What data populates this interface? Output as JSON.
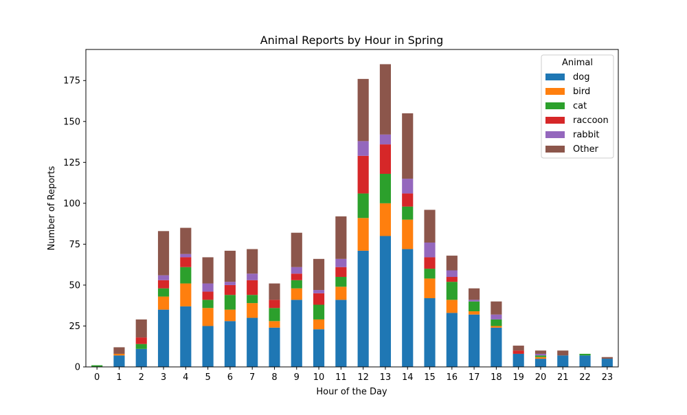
{
  "chart_data": {
    "type": "bar",
    "stacked": true,
    "title": "Animal Reports by Hour in Spring",
    "xlabel": "Hour of the Day",
    "ylabel": "Number of Reports",
    "ylim": [
      0,
      194
    ],
    "yticks": [
      0,
      25,
      50,
      75,
      100,
      125,
      150,
      175
    ],
    "grid": false,
    "legend": {
      "title": "Animal",
      "placement": "top-right"
    },
    "categories": [
      "0",
      "1",
      "2",
      "3",
      "4",
      "5",
      "6",
      "7",
      "8",
      "9",
      "10",
      "11",
      "12",
      "13",
      "14",
      "15",
      "16",
      "17",
      "18",
      "19",
      "20",
      "21",
      "22",
      "23"
    ],
    "series": [
      {
        "name": "dog",
        "color": "#1f77b4",
        "values": [
          0,
          7,
          11,
          35,
          37,
          25,
          28,
          30,
          24,
          41,
          23,
          41,
          71,
          80,
          72,
          42,
          33,
          32,
          24,
          8,
          5,
          7,
          7,
          5
        ]
      },
      {
        "name": "bird",
        "color": "#ff7f0e",
        "values": [
          0,
          1,
          0,
          8,
          14,
          11,
          7,
          9,
          4,
          7,
          6,
          8,
          20,
          20,
          18,
          12,
          8,
          2,
          1,
          0,
          1,
          0,
          0,
          0
        ]
      },
      {
        "name": "cat",
        "color": "#2ca02c",
        "values": [
          1,
          0,
          3,
          5,
          10,
          5,
          9,
          5,
          8,
          5,
          9,
          6,
          15,
          18,
          8,
          6,
          11,
          6,
          4,
          0,
          1,
          0,
          1,
          0
        ]
      },
      {
        "name": "raccoon",
        "color": "#d62728",
        "values": [
          0,
          0,
          4,
          5,
          6,
          5,
          6,
          9,
          5,
          4,
          7,
          6,
          23,
          18,
          8,
          7,
          3,
          0,
          0,
          2,
          0,
          0,
          0,
          0
        ]
      },
      {
        "name": "rabbit",
        "color": "#9467bd",
        "values": [
          0,
          0,
          0,
          3,
          2,
          5,
          2,
          4,
          0,
          4,
          2,
          5,
          9,
          6,
          9,
          9,
          4,
          1,
          3,
          0,
          1,
          0,
          0,
          0
        ]
      },
      {
        "name": "Other",
        "color": "#8c564b",
        "values": [
          0,
          4,
          11,
          27,
          16,
          16,
          19,
          15,
          10,
          21,
          19,
          26,
          38,
          43,
          40,
          20,
          9,
          7,
          8,
          3,
          2,
          3,
          0,
          1
        ]
      }
    ]
  }
}
